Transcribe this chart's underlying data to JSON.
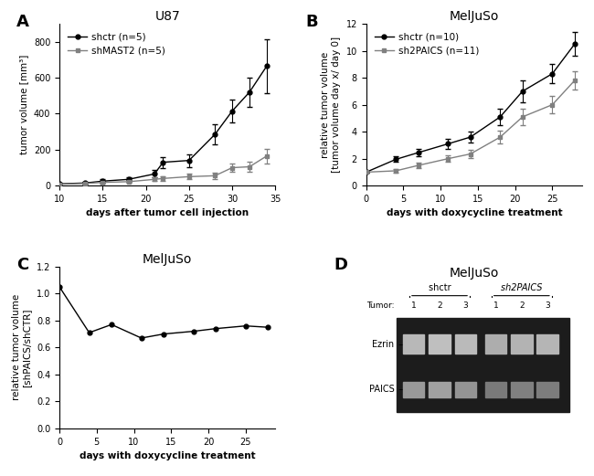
{
  "panelA": {
    "title": "U87",
    "xlabel": "days after tumor cell injection",
    "ylabel": "tumor volume [mm³]",
    "xlim": [
      10,
      35
    ],
    "ylim": [
      0,
      900
    ],
    "yticks": [
      0,
      200,
      400,
      600,
      800
    ],
    "xticks": [
      10,
      15,
      20,
      25,
      30,
      35
    ],
    "shctr": {
      "x": [
        10,
        13,
        15,
        18,
        21,
        22,
        25,
        28,
        30,
        32,
        34
      ],
      "y": [
        10,
        15,
        25,
        35,
        65,
        130,
        140,
        285,
        415,
        520,
        665
      ],
      "yerr": [
        5,
        8,
        10,
        12,
        20,
        30,
        35,
        55,
        65,
        80,
        150
      ]
    },
    "shmast2": {
      "x": [
        10,
        13,
        15,
        18,
        21,
        22,
        25,
        28,
        30,
        32,
        34
      ],
      "y": [
        8,
        12,
        18,
        22,
        35,
        40,
        50,
        55,
        100,
        105,
        165
      ],
      "yerr": [
        4,
        5,
        6,
        7,
        10,
        12,
        15,
        18,
        25,
        28,
        40
      ]
    }
  },
  "panelB": {
    "title": "MelJuSo",
    "xlabel": "days with doxycycline treatment",
    "ylabel_line1": "relative tumor volume",
    "ylabel_line2": "[tumor volume day x/ day 0]",
    "xlim": [
      0,
      29
    ],
    "ylim": [
      0,
      12
    ],
    "yticks": [
      0,
      2,
      4,
      6,
      8,
      10,
      12
    ],
    "xticks": [
      0,
      5,
      10,
      15,
      20,
      25
    ],
    "shctr": {
      "x": [
        0,
        4,
        7,
        11,
        14,
        18,
        21,
        25,
        28
      ],
      "y": [
        1.0,
        1.95,
        2.45,
        3.1,
        3.6,
        5.1,
        7.0,
        8.3,
        10.5
      ],
      "yerr": [
        0.05,
        0.2,
        0.3,
        0.35,
        0.4,
        0.6,
        0.8,
        0.7,
        0.9
      ]
    },
    "sh2paics": {
      "x": [
        0,
        4,
        7,
        11,
        14,
        18,
        21,
        25,
        28
      ],
      "y": [
        1.0,
        1.1,
        1.5,
        2.0,
        2.35,
        3.6,
        5.1,
        6.0,
        7.8
      ],
      "yerr": [
        0.05,
        0.15,
        0.2,
        0.25,
        0.3,
        0.5,
        0.6,
        0.65,
        0.7
      ]
    }
  },
  "panelC": {
    "title": "MelJuSo",
    "xlabel": "days with doxycycline treatment",
    "ylabel_line1": "relative tumor volume",
    "ylabel_line2": "[shPAICS/shCTR]",
    "xlim": [
      0,
      29
    ],
    "ylim": [
      0.0,
      1.2
    ],
    "yticks": [
      0.0,
      0.2,
      0.4,
      0.6,
      0.8,
      1.0,
      1.2
    ],
    "xticks": [
      0,
      5,
      10,
      15,
      20,
      25
    ],
    "x": [
      0,
      4,
      7,
      11,
      14,
      18,
      21,
      25,
      28
    ],
    "y": [
      1.05,
      0.71,
      0.77,
      0.67,
      0.7,
      0.72,
      0.74,
      0.76,
      0.75
    ]
  },
  "panelD": {
    "title": "MelJuSo",
    "shctr_label": "sh​ctr",
    "sh2paics_label": "sh2​PAICS",
    "tumor_label": "Tumor:",
    "tumor_nums": [
      "1",
      "2",
      "3",
      "1",
      "2",
      "3"
    ],
    "ezrin_label": "Ezrin",
    "paics_label": "PAICS",
    "gel_bg": "#1c1c1c",
    "band_color_ezrin": "#606060",
    "band_color_paics": "#505050"
  },
  "line_color_black": "#000000",
  "line_color_gray": "#808080",
  "panel_label_fontsize": 13,
  "title_fontsize": 10,
  "axis_label_fontsize": 7.5,
  "tick_fontsize": 7,
  "legend_fontsize": 7.5
}
